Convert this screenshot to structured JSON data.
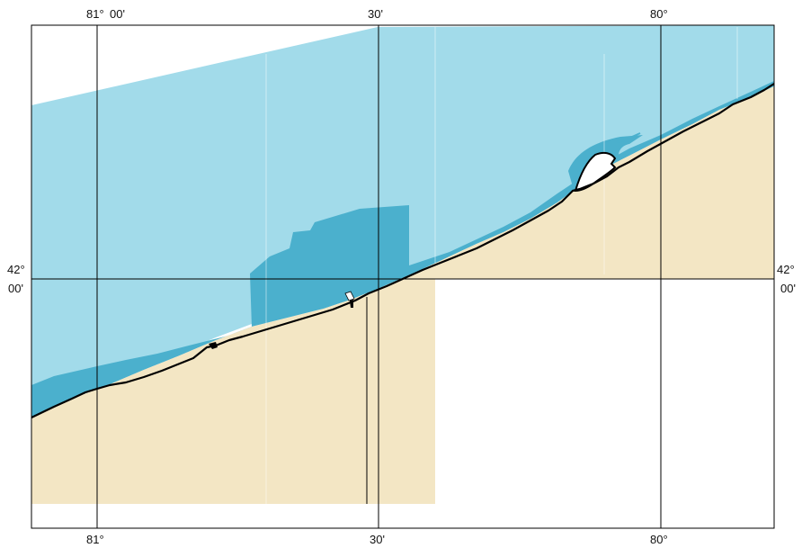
{
  "map": {
    "colors": {
      "water_light": "#a2dbea",
      "water_deep": "#4bb0cd",
      "land": "#f3e6c4",
      "coastline": "#000000",
      "graticule": "#000000",
      "background": "#ffffff"
    },
    "top_labels": {
      "lon_81": "81°",
      "lon_81_min": "00'",
      "lon_30": "30'",
      "lon_80": "80°"
    },
    "bottom_labels": {
      "lon_81": "81°",
      "lon_30": "30'",
      "lon_80": "80°"
    },
    "left_labels": {
      "lat_42": "42°",
      "lat_42_min": "00'"
    },
    "right_labels": {
      "lat_42": "42°",
      "lat_42_min": "00'"
    }
  }
}
